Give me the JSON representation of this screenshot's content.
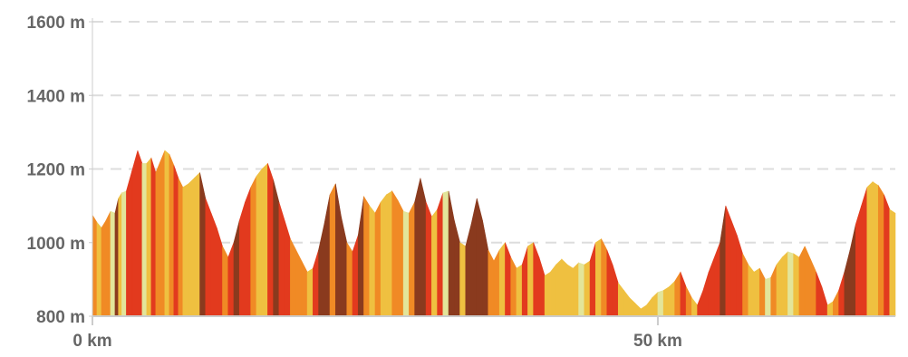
{
  "chart_data": {
    "type": "area",
    "title": "",
    "xlabel": "",
    "ylabel": "",
    "xlim": [
      0,
      71
    ],
    "ylim": [
      800,
      1600
    ],
    "x_ticks": [
      {
        "value": 0,
        "label": "0 km"
      },
      {
        "value": 50,
        "label": "50 km"
      }
    ],
    "y_ticks": [
      {
        "value": 800,
        "label": "800 m"
      },
      {
        "value": 1000,
        "label": "1000 m"
      },
      {
        "value": 1200,
        "label": "1200 m"
      },
      {
        "value": 1400,
        "label": "1400 m"
      },
      {
        "value": 1600,
        "label": "1600 m"
      }
    ],
    "grid": {
      "horizontal": true,
      "style": "dashed"
    },
    "profile": {
      "x": [
        0,
        0.4,
        0.8,
        1.2,
        1.6,
        2.0,
        2.3,
        2.6,
        3.0,
        3.5,
        4.0,
        4.4,
        4.8,
        5.2,
        5.6,
        6.0,
        6.4,
        6.8,
        7.2,
        7.6,
        8.0,
        8.5,
        9.0,
        9.5,
        10.0,
        10.5,
        11.0,
        11.5,
        12.0,
        12.5,
        13.0,
        13.5,
        14.0,
        14.5,
        15.0,
        15.5,
        16.0,
        16.5,
        17.0,
        17.5,
        18.0,
        18.5,
        19.0,
        19.5,
        20.0,
        20.5,
        21.0,
        21.5,
        22.0,
        22.5,
        23.0,
        23.5,
        24.0,
        24.5,
        25.0,
        25.5,
        26.0,
        26.5,
        27.0,
        27.5,
        28.0,
        28.5,
        29.0,
        29.5,
        30.0,
        30.5,
        31.0,
        31.5,
        32.0,
        32.5,
        33.0,
        33.5,
        34.0,
        34.5,
        35.0,
        35.5,
        36.0,
        36.5,
        37.0,
        37.5,
        38.0,
        38.5,
        39.0,
        39.5,
        40.0,
        40.5,
        41.0,
        41.5,
        42.0,
        42.5,
        43.0,
        43.5,
        44.0,
        44.5,
        45.0,
        45.5,
        46.0,
        46.5,
        47.0,
        47.5,
        48.0,
        48.5,
        49.0,
        49.5,
        50.0,
        50.5,
        51.0,
        51.5,
        52.0,
        52.5,
        53.0,
        53.5,
        54.0,
        54.5,
        55.0,
        55.5,
        56.0,
        56.5,
        57.0,
        57.5,
        58.0,
        58.5,
        59.0,
        59.5,
        60.0,
        60.5,
        61.0,
        61.5,
        62.0,
        62.5,
        63.0,
        63.5,
        64.0,
        64.5,
        65.0,
        65.5,
        66.0,
        66.5,
        67.0,
        67.5,
        68.0,
        68.5,
        69.0,
        69.5,
        70.0,
        70.5,
        71.0
      ],
      "elevation": [
        1075,
        1055,
        1040,
        1060,
        1085,
        1080,
        1120,
        1135,
        1140,
        1195,
        1250,
        1215,
        1215,
        1230,
        1190,
        1220,
        1250,
        1240,
        1210,
        1175,
        1150,
        1160,
        1175,
        1190,
        1120,
        1080,
        1040,
        990,
        960,
        1000,
        1060,
        1110,
        1150,
        1180,
        1200,
        1215,
        1170,
        1110,
        1060,
        1010,
        980,
        950,
        920,
        930,
        980,
        1050,
        1130,
        1160,
        1070,
        1000,
        975,
        1020,
        1125,
        1100,
        1080,
        1110,
        1130,
        1140,
        1115,
        1085,
        1080,
        1110,
        1175,
        1110,
        1070,
        1090,
        1135,
        1140,
        1060,
        1000,
        990,
        1050,
        1120,
        1060,
        980,
        950,
        980,
        1000,
        960,
        930,
        940,
        990,
        1000,
        960,
        910,
        920,
        940,
        955,
        940,
        930,
        945,
        940,
        950,
        1000,
        1010,
        980,
        940,
        890,
        870,
        850,
        835,
        820,
        830,
        850,
        865,
        870,
        880,
        895,
        920,
        880,
        850,
        830,
        870,
        920,
        960,
        1000,
        1100,
        1060,
        1020,
        970,
        940,
        920,
        930,
        900,
        905,
        940,
        960,
        975,
        970,
        960,
        990,
        955,
        920,
        880,
        830,
        840,
        870,
        920,
        980,
        1050,
        1100,
        1150,
        1165,
        1155,
        1130,
        1090,
        1080
      ]
    },
    "slope_colors": [
      "#E3E59A",
      "#EFC040",
      "#F08A25",
      "#E23A1E",
      "#8A3A1E"
    ]
  }
}
